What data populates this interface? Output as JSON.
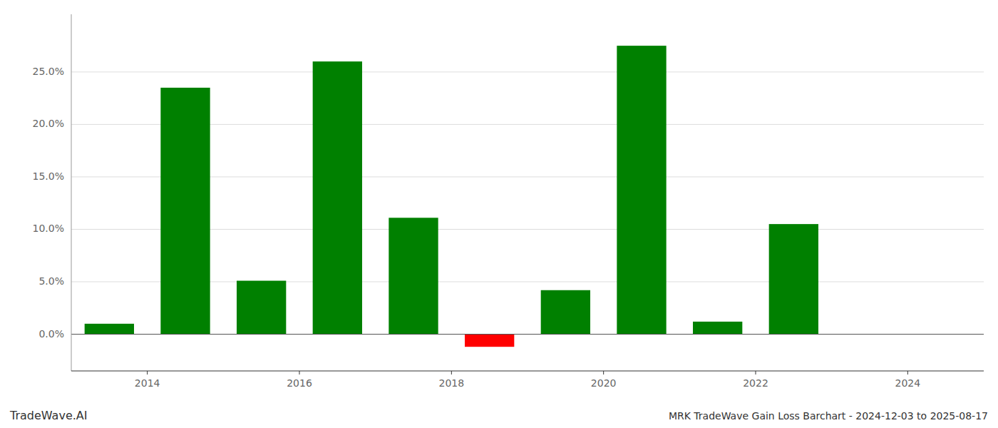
{
  "chart_data": {
    "type": "bar",
    "title": "MRK TradeWave Gain Loss Barchart - 2024-12-03 to 2025-08-17",
    "annotations": [
      "TradeWave.AI"
    ],
    "x": [
      2013.5,
      2014.5,
      2015.5,
      2016.5,
      2017.5,
      2018.5,
      2019.5,
      2020.5,
      2021.5,
      2022.5
    ],
    "values": [
      0.01,
      0.235,
      0.051,
      0.26,
      0.111,
      -0.012,
      0.042,
      0.275,
      0.012,
      0.105
    ],
    "colors": [
      "#008000",
      "#008000",
      "#008000",
      "#008000",
      "#008000",
      "#ff0000",
      "#008000",
      "#008000",
      "#008000",
      "#008000"
    ],
    "xlim": [
      2013.0,
      2025.0
    ],
    "ylim": [
      -0.035,
      0.305
    ],
    "xticks": [
      2014,
      2016,
      2018,
      2020,
      2022,
      2024
    ],
    "yticks": [
      {
        "value": 0.0,
        "label": "0.0%"
      },
      {
        "value": 0.05,
        "label": "5.0%"
      },
      {
        "value": 0.1,
        "label": "10.0%"
      },
      {
        "value": 0.15,
        "label": "15.0%"
      },
      {
        "value": 0.2,
        "label": "20.0%"
      },
      {
        "value": 0.25,
        "label": "25.0%"
      }
    ],
    "grid": true
  }
}
